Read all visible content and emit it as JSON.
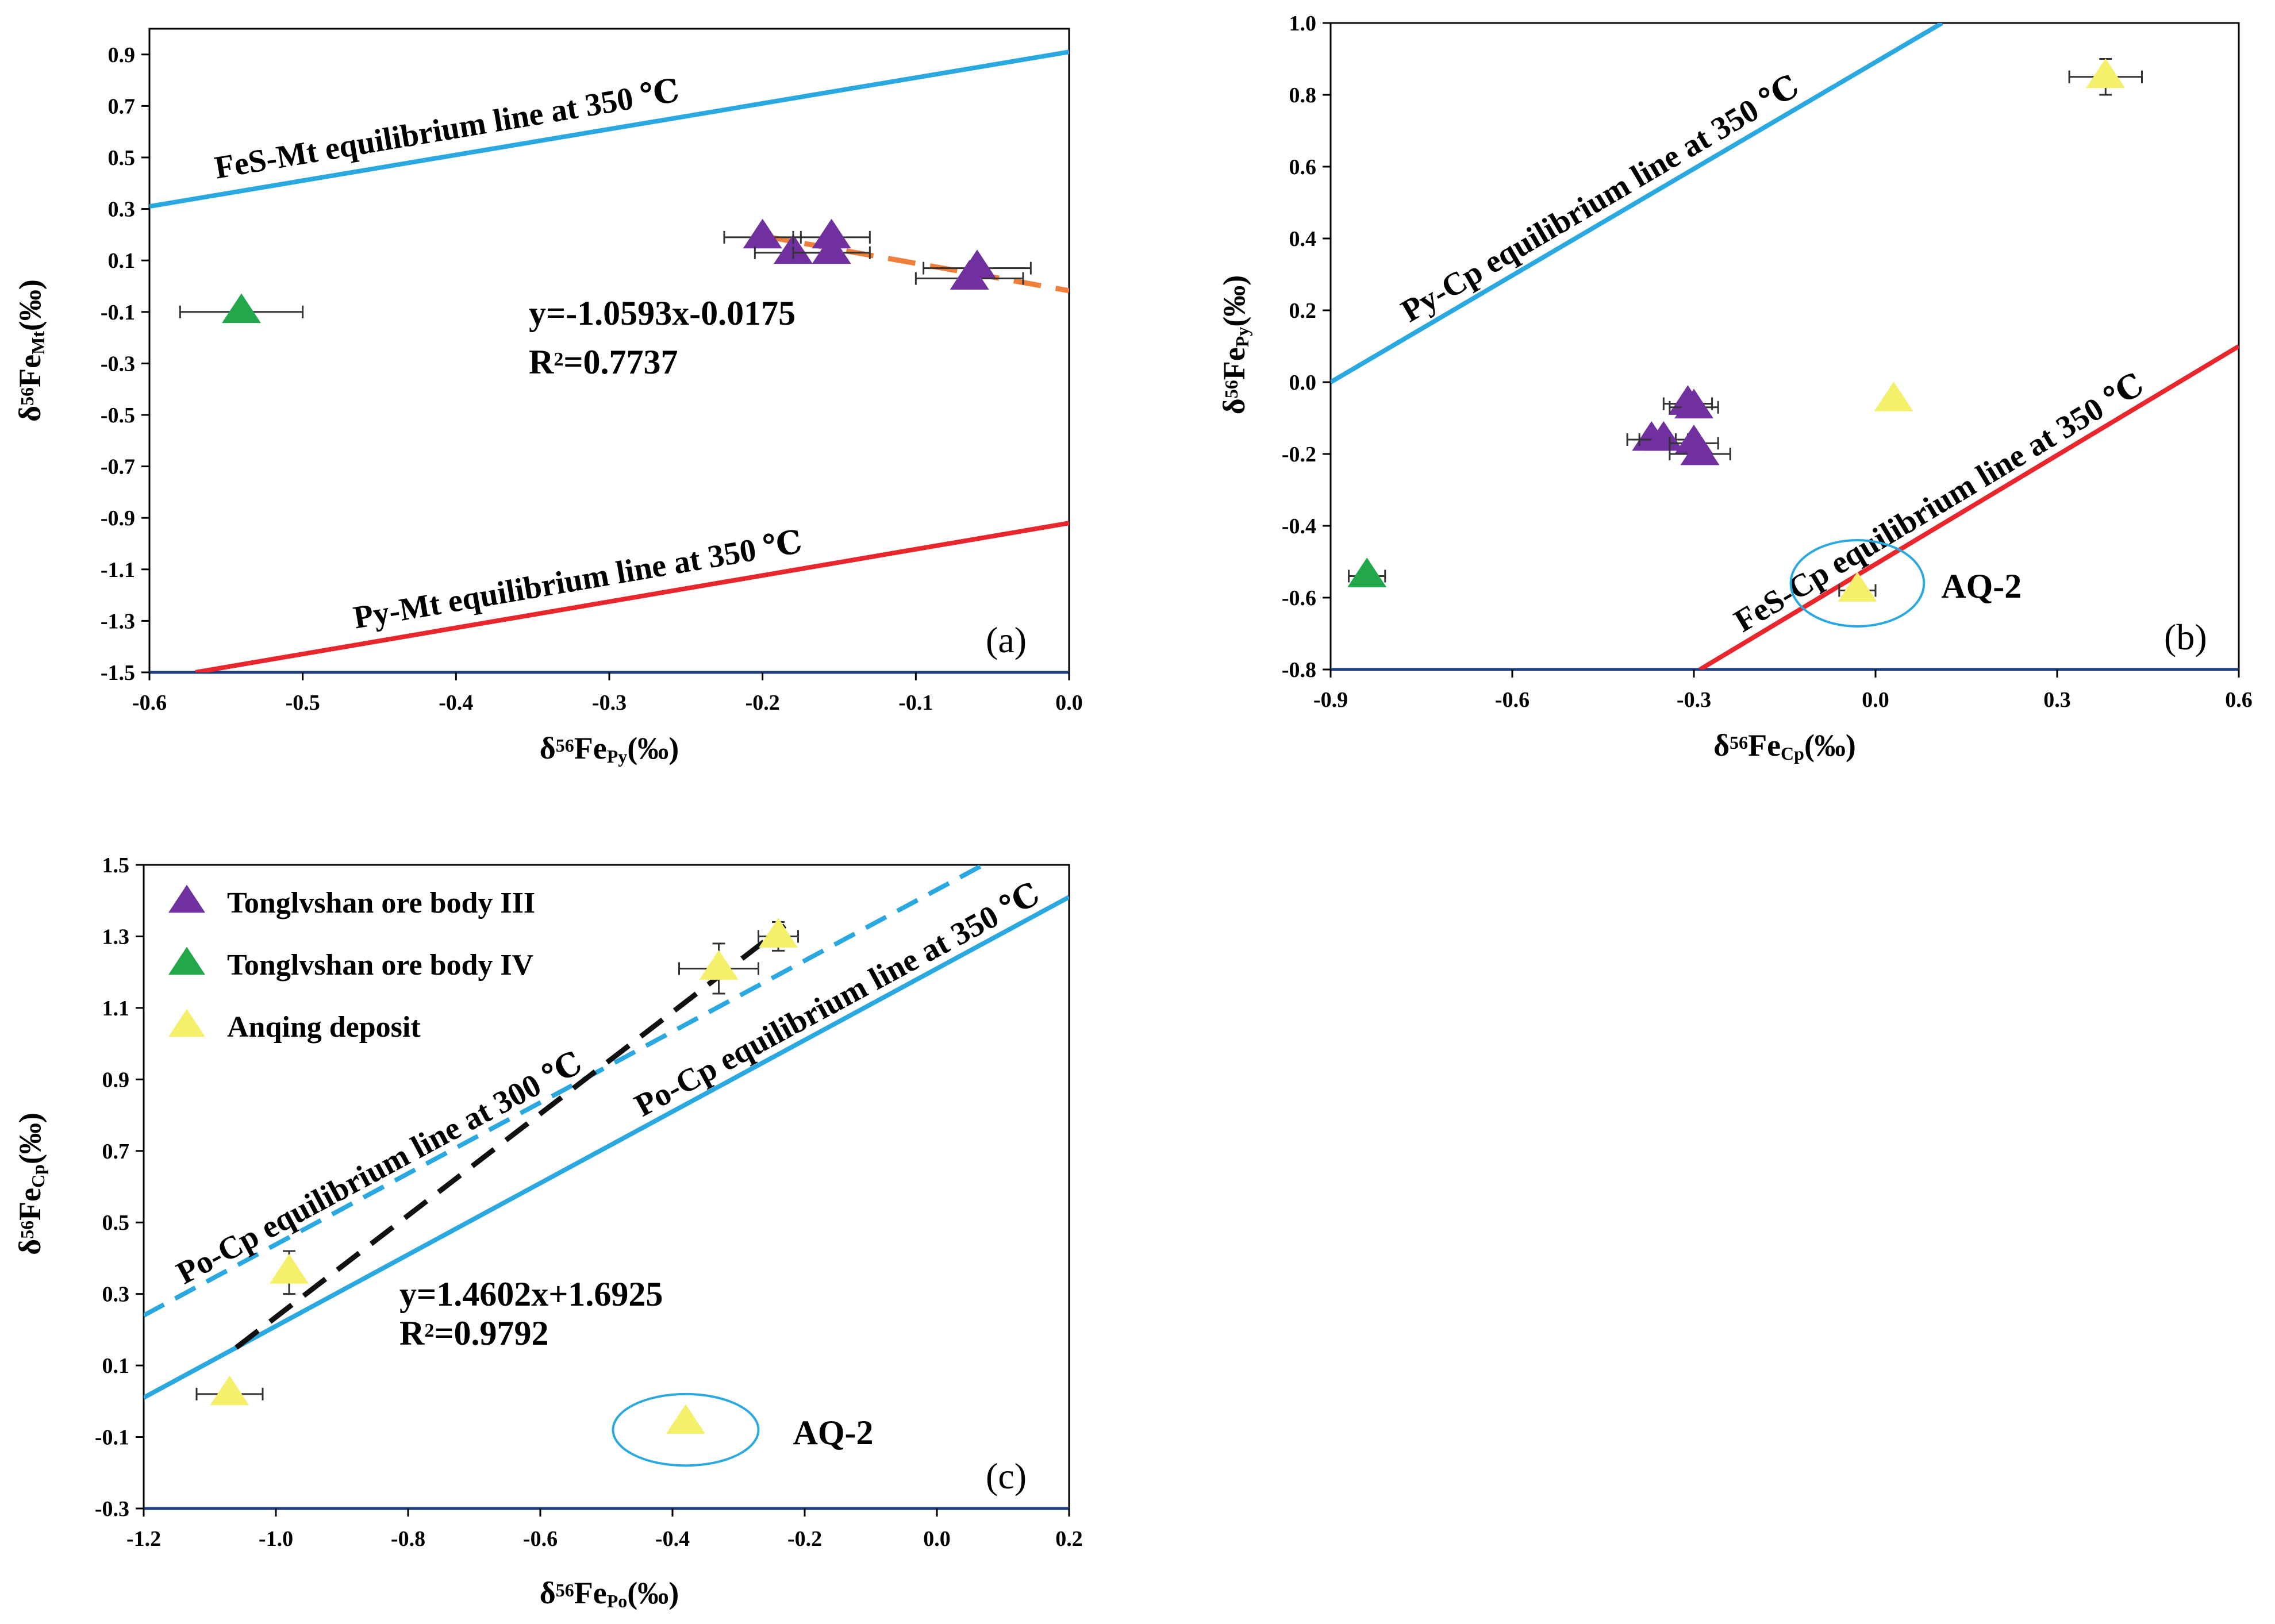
{
  "chart_data": [
    {
      "id": "a",
      "type": "scatter",
      "tag": "(a)",
      "xlabel": {
        "prefix": "δ",
        "sup": "56",
        "main": "Fe",
        "sub": "Py",
        "unit": "(‰)"
      },
      "ylabel": {
        "prefix": "δ",
        "sup": "56",
        "main": "Fe",
        "sub": "Mt",
        "unit": "(‰)"
      },
      "xlim": [
        -0.6,
        0.0
      ],
      "ylim": [
        -1.5,
        1.0
      ],
      "xticks": [
        -0.6,
        -0.5,
        -0.4,
        -0.3,
        -0.2,
        -0.1,
        0.0
      ],
      "xtick_labels": [
        "-0.6",
        "-0.5",
        "-0.4",
        "-0.3",
        "-0.2",
        "-0.1",
        "0.0"
      ],
      "yticks": [
        -1.5,
        -1.3,
        -1.1,
        -0.9,
        -0.7,
        -0.5,
        -0.3,
        -0.1,
        0.1,
        0.3,
        0.5,
        0.7,
        0.9
      ],
      "ytick_labels": [
        "-1.5",
        "-1.3",
        "-1.1",
        "-0.9",
        "-0.7",
        "-0.5",
        "-0.3",
        "-0.1",
        "0.1",
        "0.3",
        "0.5",
        "0.7",
        "0.9"
      ],
      "lines": [
        {
          "name": "feS-mt-350",
          "label": "FeS-Mt equilibrium line at 350 ℃",
          "color": "#2aa9e0",
          "dash": false,
          "points": [
            [
              -0.6,
              0.31
            ],
            [
              0.0,
              0.91
            ]
          ]
        },
        {
          "name": "py-mt-350",
          "label": "Py-Mt equilibrium line at 350 ℃",
          "color": "#e8262b",
          "dash": false,
          "points": [
            [
              -0.57,
              -1.5
            ],
            [
              0.0,
              -0.92
            ]
          ]
        },
        {
          "name": "regression",
          "label": "",
          "color": "#f07f3c",
          "dash": true,
          "points": [
            [
              -0.2,
              0.195
            ],
            [
              0.0,
              -0.0175
            ]
          ]
        }
      ],
      "equation": "y=-1.0593x-0.0175",
      "r2_label": "R",
      "r2_value": "=0.7737",
      "series": [
        {
          "name": "Tonglvshan ore body III",
          "color": "#7030a0",
          "points": [
            {
              "x": -0.2,
              "y": 0.19,
              "xerr": 0.025
            },
            {
              "x": -0.18,
              "y": 0.13,
              "xerr": 0.025
            },
            {
              "x": -0.155,
              "y": 0.19,
              "xerr": 0.025
            },
            {
              "x": -0.155,
              "y": 0.13,
              "xerr": 0.025
            },
            {
              "x": -0.06,
              "y": 0.07,
              "xerr": 0.035
            },
            {
              "x": -0.065,
              "y": 0.03,
              "xerr": 0.035
            }
          ]
        },
        {
          "name": "Tonglvshan ore body IV",
          "color": "#22a84a",
          "points": [
            {
              "x": -0.54,
              "y": -0.1,
              "xerr": 0.04
            }
          ]
        }
      ]
    },
    {
      "id": "b",
      "type": "scatter",
      "tag": "(b)",
      "xlabel": {
        "prefix": "δ",
        "sup": "56",
        "main": "Fe",
        "sub": "Cp",
        "unit": "(‰)"
      },
      "ylabel": {
        "prefix": "δ",
        "sup": "56",
        "main": "Fe",
        "sub": "Py",
        "unit": "(‰)"
      },
      "xlim": [
        -0.9,
        0.6
      ],
      "ylim": [
        -0.8,
        1.0
      ],
      "xticks": [
        -0.9,
        -0.6,
        -0.3,
        0.0,
        0.3,
        0.6
      ],
      "xtick_labels": [
        "-0.9",
        "-0.6",
        "-0.3",
        "0.0",
        "0.3",
        "0.6"
      ],
      "yticks": [
        -0.8,
        -0.6,
        -0.4,
        -0.2,
        0.0,
        0.2,
        0.4,
        0.6,
        0.8,
        1.0
      ],
      "ytick_labels": [
        "-0.8",
        "-0.6",
        "-0.4",
        "-0.2",
        "0.0",
        "0.2",
        "0.4",
        "0.6",
        "0.8",
        "1.0"
      ],
      "lines": [
        {
          "name": "py-cp-350",
          "label": "Py-Cp equilibrium line at 350 ℃",
          "color": "#2aa9e0",
          "dash": false,
          "points": [
            [
              -0.9,
              0.0
            ],
            [
              0.11,
              1.0
            ]
          ]
        },
        {
          "name": "feS-cp-350",
          "label": "FeS-Cp equilibrium line  at 350 ℃",
          "color": "#e8262b",
          "dash": false,
          "points": [
            [
              -0.29,
              -0.8
            ],
            [
              0.6,
              0.1
            ]
          ]
        }
      ],
      "highlight": {
        "label": "AQ-2",
        "cx": -0.03,
        "cy": -0.56,
        "rx": 0.11,
        "ry": 0.12
      },
      "series": [
        {
          "name": "Tonglvshan ore body III",
          "color": "#7030a0",
          "points": [
            {
              "x": -0.31,
              "y": -0.06,
              "xerr": 0.04
            },
            {
              "x": -0.3,
              "y": -0.07,
              "xerr": 0.04
            },
            {
              "x": -0.37,
              "y": -0.16,
              "xerr": 0.04
            },
            {
              "x": -0.35,
              "y": -0.16,
              "xerr": 0.04
            },
            {
              "x": -0.3,
              "y": -0.17,
              "xerr": 0.04
            },
            {
              "x": -0.29,
              "y": -0.2,
              "xerr": 0.05
            }
          ]
        },
        {
          "name": "Tonglvshan ore body IV",
          "color": "#22a84a",
          "points": [
            {
              "x": -0.84,
              "y": -0.54,
              "xerr": 0.03
            }
          ]
        },
        {
          "name": "Anqing deposit",
          "color": "#f5f06a",
          "points": [
            {
              "x": 0.38,
              "y": 0.85,
              "xerr": 0.06,
              "yerr": 0.05
            },
            {
              "x": 0.03,
              "y": -0.05
            },
            {
              "x": -0.03,
              "y": -0.58,
              "xerr": 0.03
            }
          ]
        }
      ]
    },
    {
      "id": "c",
      "type": "scatter",
      "tag": "(c)",
      "xlabel": {
        "prefix": "δ",
        "sup": "56",
        "main": "Fe",
        "sub": "Po",
        "unit": "(‰)"
      },
      "ylabel": {
        "prefix": "δ",
        "sup": "56",
        "main": "Fe",
        "sub": "Cp",
        "unit": "(‰)"
      },
      "xlim": [
        -1.2,
        0.2
      ],
      "ylim": [
        -0.3,
        1.5
      ],
      "xticks": [
        -1.2,
        -1.0,
        -0.8,
        -0.6,
        -0.4,
        -0.2,
        0.0,
        0.2
      ],
      "xtick_labels": [
        "-1.2",
        "-1.0",
        "-0.8",
        "-0.6",
        "-0.4",
        "-0.2",
        "0.0",
        "0.2"
      ],
      "yticks": [
        -0.3,
        -0.1,
        0.1,
        0.3,
        0.5,
        0.7,
        0.9,
        1.1,
        1.3,
        1.5
      ],
      "ytick_labels": [
        "-0.3",
        "-0.1",
        "0.1",
        "0.3",
        "0.5",
        "0.7",
        "0.9",
        "1.1",
        "1.3",
        "1.5"
      ],
      "lines": [
        {
          "name": "po-cp-300",
          "label": "Po-Cp equilibrium line  at 300 ℃",
          "color": "#2aa9e0",
          "dash": true,
          "points": [
            [
              -1.2,
              0.24
            ],
            [
              0.07,
              1.5
            ]
          ]
        },
        {
          "name": "po-cp-350",
          "label": "Po-Cp equilibrium line  at 350 ℃",
          "color": "#2aa9e0",
          "dash": false,
          "points": [
            [
              -1.2,
              0.01
            ],
            [
              0.2,
              1.41
            ]
          ]
        },
        {
          "name": "regression",
          "label": "",
          "color": "#111111",
          "dash": true,
          "points": [
            [
              -1.06,
              0.15
            ],
            [
              -0.23,
              1.33
            ]
          ]
        }
      ],
      "equation": "y=1.4602x+1.6925",
      "r2_label": "R",
      "r2_value": "=0.9792",
      "highlight": {
        "label": "AQ-2",
        "cx": -0.38,
        "cy": -0.08,
        "rx": 0.11,
        "ry": 0.1
      },
      "legend": [
        {
          "label": "Tonglvshan ore body III",
          "color": "#7030a0"
        },
        {
          "label": "Tonglvshan ore body IV",
          "color": "#22a84a"
        },
        {
          "label": "Anqing deposit",
          "color": "#f5f06a"
        }
      ],
      "series": [
        {
          "name": "Anqing deposit",
          "color": "#f5f06a",
          "points": [
            {
              "x": -1.07,
              "y": 0.02,
              "xerr": 0.05
            },
            {
              "x": -0.98,
              "y": 0.36,
              "yerr": 0.06
            },
            {
              "x": -0.33,
              "y": 1.21,
              "xerr": 0.06,
              "yerr": 0.07
            },
            {
              "x": -0.24,
              "y": 1.3,
              "xerr": 0.03,
              "yerr": 0.04
            },
            {
              "x": -0.38,
              "y": -0.06
            }
          ]
        }
      ]
    }
  ]
}
